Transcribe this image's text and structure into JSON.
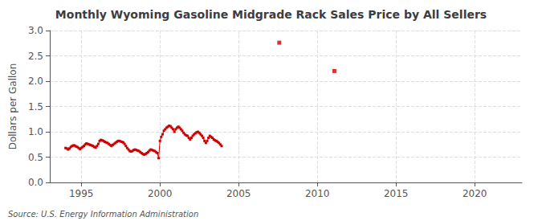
{
  "chart_data": {
    "type": "line",
    "title": "Monthly Wyoming Gasoline Midgrade Rack Sales Price by All Sellers",
    "ylabel": "Dollars per Gallon",
    "annotations": [
      "Source: U.S. Energy Information Administration"
    ],
    "color": "#cc0000",
    "marker": "square",
    "grid": true,
    "xlim": [
      1993.0,
      2023.0
    ],
    "ylim": [
      0.0,
      3.0
    ],
    "xticks": [
      1995,
      2000,
      2005,
      2010,
      2015,
      2020
    ],
    "yticks": [
      {
        "value": 0.0,
        "label": "0.0"
      },
      0.5,
      {
        "value": 1.0,
        "label": "1.0"
      },
      1.5,
      {
        "value": 2.0,
        "label": "2.0"
      },
      2.5,
      {
        "value": 3.0,
        "label": "3.0"
      }
    ],
    "series": [
      {
        "type": "line",
        "x": [
          1994.0,
          1994.083,
          1994.167,
          1994.25,
          1994.333,
          1994.417,
          1994.5,
          1994.583,
          1994.667,
          1994.75,
          1994.833,
          1994.917,
          1995.0,
          1995.083,
          1995.167,
          1995.25,
          1995.333,
          1995.417,
          1995.5,
          1995.583,
          1995.667,
          1995.75,
          1995.833,
          1995.917,
          1996.0,
          1996.083,
          1996.167,
          1996.25,
          1996.333,
          1996.417,
          1996.5,
          1996.583,
          1996.667,
          1996.75,
          1996.833,
          1996.917,
          1997.0,
          1997.083,
          1997.167,
          1997.25,
          1997.333,
          1997.417,
          1997.5,
          1997.583,
          1997.667,
          1997.75,
          1997.833,
          1997.917,
          1998.0,
          1998.083,
          1998.167,
          1998.25,
          1998.333,
          1998.417,
          1998.5,
          1998.583,
          1998.667,
          1998.75,
          1998.833,
          1998.917,
          1999.0,
          1999.083,
          1999.167,
          1999.25,
          1999.333,
          1999.417,
          1999.5,
          1999.583,
          1999.667,
          1999.75,
          1999.833,
          1999.917,
          2000.0,
          2000.083,
          2000.167,
          2000.25,
          2000.333,
          2000.417,
          2000.5,
          2000.583,
          2000.667,
          2000.75,
          2000.833,
          2000.917,
          2001.0,
          2001.083,
          2001.167,
          2001.25,
          2001.333,
          2001.417,
          2001.5,
          2001.583,
          2001.667,
          2001.75,
          2001.833,
          2001.917,
          2002.0,
          2002.083,
          2002.167,
          2002.25,
          2002.333,
          2002.417,
          2002.5,
          2002.583,
          2002.667,
          2002.75,
          2002.833,
          2002.917,
          2003.0,
          2003.083,
          2003.167,
          2003.25,
          2003.333,
          2003.417,
          2003.5,
          2003.583,
          2003.667,
          2003.75,
          2003.833,
          2003.917
        ],
        "values": [
          0.68,
          0.67,
          0.65,
          0.67,
          0.7,
          0.72,
          0.73,
          0.73,
          0.71,
          0.7,
          0.68,
          0.66,
          0.68,
          0.7,
          0.72,
          0.75,
          0.77,
          0.76,
          0.75,
          0.74,
          0.73,
          0.72,
          0.7,
          0.69,
          0.72,
          0.76,
          0.82,
          0.84,
          0.83,
          0.82,
          0.8,
          0.79,
          0.78,
          0.76,
          0.74,
          0.72,
          0.74,
          0.76,
          0.78,
          0.8,
          0.82,
          0.82,
          0.81,
          0.8,
          0.79,
          0.76,
          0.72,
          0.68,
          0.65,
          0.62,
          0.61,
          0.62,
          0.64,
          0.65,
          0.64,
          0.63,
          0.62,
          0.6,
          0.58,
          0.56,
          0.55,
          0.56,
          0.58,
          0.6,
          0.63,
          0.65,
          0.64,
          0.63,
          0.62,
          0.6,
          0.58,
          0.48,
          0.82,
          0.9,
          0.95,
          1.02,
          1.05,
          1.08,
          1.1,
          1.12,
          1.11,
          1.08,
          1.05,
          1.0,
          1.05,
          1.08,
          1.1,
          1.08,
          1.05,
          1.02,
          0.98,
          0.95,
          0.93,
          0.92,
          0.88,
          0.85,
          0.88,
          0.92,
          0.95,
          0.97,
          0.99,
          1.0,
          0.98,
          0.95,
          0.92,
          0.88,
          0.82,
          0.78,
          0.82,
          0.88,
          0.92,
          0.9,
          0.88,
          0.85,
          0.83,
          0.82,
          0.8,
          0.78,
          0.75,
          0.72
        ]
      },
      {
        "type": "scatter",
        "x": [
          2007.583,
          2011.083
        ],
        "values": [
          2.76,
          2.2
        ]
      }
    ]
  }
}
